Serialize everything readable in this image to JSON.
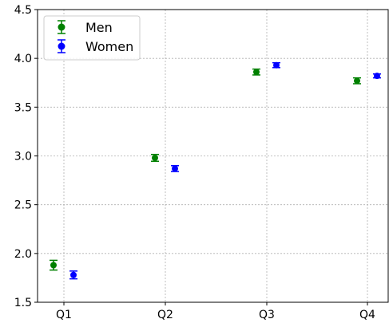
{
  "chart_data": {
    "type": "scatter",
    "categories": [
      "Q1",
      "Q2",
      "Q3",
      "Q4"
    ],
    "yticks": [
      "1.5",
      "2.0",
      "2.5",
      "3.0",
      "3.5",
      "4.0",
      "4.5"
    ],
    "ylim": [
      1.5,
      4.5
    ],
    "grid": true,
    "legend_position": "top-left",
    "series": [
      {
        "name": "Men",
        "color": "#008000",
        "values": [
          1.88,
          2.98,
          3.86,
          3.77
        ],
        "errors": [
          0.05,
          0.035,
          0.03,
          0.03
        ]
      },
      {
        "name": "Women",
        "color": "#0000ff",
        "values": [
          1.78,
          2.87,
          3.93,
          3.82
        ],
        "errors": [
          0.04,
          0.03,
          0.025,
          0.02
        ]
      }
    ]
  }
}
